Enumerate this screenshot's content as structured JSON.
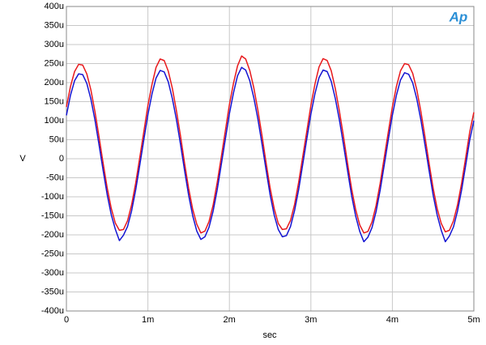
{
  "chart_data": {
    "type": "line",
    "y_label": "V",
    "x_label": "sec",
    "logo": "Ap",
    "grid": true,
    "xlim": [
      0,
      0.005
    ],
    "ylim": [
      -0.0004,
      0.0004
    ],
    "xticks": [
      0,
      {
        "value": 0.001,
        "label": "1m"
      },
      {
        "value": 0.002,
        "label": "2m"
      },
      {
        "value": 0.003,
        "label": "3m"
      },
      {
        "value": 0.004,
        "label": "4m"
      },
      {
        "value": 0.005,
        "label": "5m"
      }
    ],
    "yticks": [
      {
        "value": 0.0004,
        "label": "400u"
      },
      {
        "value": 0.00035,
        "label": "350u"
      },
      {
        "value": 0.0003,
        "label": "300u"
      },
      {
        "value": 0.00025,
        "label": "250u"
      },
      {
        "value": 0.0002,
        "label": "200u"
      },
      {
        "value": 0.00015,
        "label": "150u"
      },
      {
        "value": 0.0001,
        "label": "100u"
      },
      {
        "value": 5e-05,
        "label": "50u"
      },
      0,
      {
        "value": -5e-05,
        "label": "-50u"
      },
      {
        "value": -0.0001,
        "label": "-100u"
      },
      {
        "value": -0.00015,
        "label": "-150u"
      },
      {
        "value": -0.0002,
        "label": "-200u"
      },
      {
        "value": -0.00025,
        "label": "-250u"
      },
      {
        "value": -0.0003,
        "label": "-300u"
      },
      {
        "value": -0.00035,
        "label": "-350u"
      },
      {
        "value": -0.0004,
        "label": "-400u"
      }
    ],
    "x": [
      0,
      5e-05,
      0.0001,
      0.00015,
      0.0002,
      0.00025,
      0.0003,
      0.00035,
      0.0004,
      0.00045,
      0.0005,
      0.00055,
      0.0006,
      0.00065,
      0.0007,
      0.00075,
      0.0008,
      0.00085,
      0.0009,
      0.00095,
      0.001,
      0.00105,
      0.0011,
      0.00115,
      0.0012,
      0.00125,
      0.0013,
      0.00135,
      0.0014,
      0.00145,
      0.0015,
      0.00155,
      0.0016,
      0.00165,
      0.0017,
      0.00175,
      0.0018,
      0.00185,
      0.0019,
      0.00195,
      0.002,
      0.00205,
      0.0021,
      0.00215,
      0.0022,
      0.00225,
      0.0023,
      0.00235,
      0.0024,
      0.00245,
      0.0025,
      0.00255,
      0.0026,
      0.00265,
      0.0027,
      0.00275,
      0.0028,
      0.00285,
      0.0029,
      0.00295,
      0.003,
      0.00305,
      0.0031,
      0.00315,
      0.0032,
      0.00325,
      0.0033,
      0.00335,
      0.0034,
      0.00345,
      0.0035,
      0.00355,
      0.0036,
      0.00365,
      0.0037,
      0.00375,
      0.0038,
      0.00385,
      0.0039,
      0.00395,
      0.004,
      0.00405,
      0.0041,
      0.00415,
      0.0042,
      0.00425,
      0.0043,
      0.00435,
      0.0044,
      0.00445,
      0.0045,
      0.00455,
      0.0046,
      0.00465,
      0.0047,
      0.00475,
      0.0048,
      0.00485,
      0.0049,
      0.00495,
      0.005
    ],
    "series": [
      {
        "color": "#e8191c",
        "values": [
          0.000136,
          0.00019,
          0.000229,
          0.000248,
          0.000246,
          0.000223,
          0.000181,
          0.000124,
          5.8e-05,
          -1.1e-05,
          -7.6e-05,
          -0.00013,
          -0.000169,
          -0.000188,
          -0.000186,
          -0.000163,
          -0.000121,
          -6.4e-05,
          3e-06,
          7.1e-05,
          0.00014,
          0.000195,
          0.00024,
          0.000262,
          0.000258,
          0.00023,
          0.000185,
          0.000126,
          6e-05,
          -1.2e-05,
          -7.8e-05,
          -0.000133,
          -0.000172,
          -0.000195,
          -0.00019,
          -0.000165,
          -0.000122,
          -6.3e-05,
          4e-06,
          7.3e-05,
          0.000142,
          0.000198,
          0.000244,
          0.00027,
          0.000262,
          0.000232,
          0.000186,
          0.000127,
          6.1e-05,
          -1e-05,
          -7.7e-05,
          -0.000131,
          -0.00017,
          -0.000186,
          -0.000184,
          -0.000162,
          -0.00012,
          -6.2e-05,
          5e-06,
          7.2e-05,
          0.00014,
          0.000196,
          0.000241,
          0.000263,
          0.000258,
          0.000231,
          0.000184,
          0.000125,
          5.9e-05,
          -1.2e-05,
          -7.9e-05,
          -0.000134,
          -0.000174,
          -0.000195,
          -0.000191,
          -0.000166,
          -0.000123,
          -6.5e-05,
          3e-06,
          7e-05,
          0.000136,
          0.00019,
          0.000231,
          0.00025,
          0.000247,
          0.000224,
          0.000181,
          0.000124,
          5.8e-05,
          -1.1e-05,
          -7.7e-05,
          -0.000131,
          -0.00017,
          -0.000192,
          -0.000188,
          -0.000163,
          -0.000121,
          -6.4e-05,
          3e-06,
          7.1e-05,
          0.000122
        ]
      },
      {
        "color": "#1414d2",
        "values": [
          0.000114,
          0.000167,
          0.000205,
          0.000223,
          0.000221,
          0.000198,
          0.000157,
          0.000102,
          3.7e-05,
          -3e-05,
          -9.4e-05,
          -0.000147,
          -0.000185,
          -0.000215,
          -0.000201,
          -0.000178,
          -0.000137,
          -8.2e-05,
          -1.7e-05,
          5e-05,
          0.000116,
          0.00017,
          0.000212,
          0.000232,
          0.000228,
          0.000202,
          0.000158,
          0.000103,
          3.8e-05,
          -3.1e-05,
          -9.6e-05,
          -0.00015,
          -0.00019,
          -0.000212,
          -0.000205,
          -0.00018,
          -0.000138,
          -8.2e-05,
          -1.6e-05,
          5.1e-05,
          0.000118,
          0.000173,
          0.000218,
          0.00024,
          0.000233,
          0.000205,
          0.00016,
          0.000104,
          3.9e-05,
          -2.9e-05,
          -9.5e-05,
          -0.000148,
          -0.000186,
          -0.000205,
          -0.000202,
          -0.000178,
          -0.000136,
          -8.1e-05,
          -1.5e-05,
          5.2e-05,
          0.000117,
          0.000171,
          0.000213,
          0.000233,
          0.000229,
          0.000203,
          0.000158,
          0.000102,
          3.7e-05,
          -3.1e-05,
          -9.7e-05,
          -0.000151,
          -0.000191,
          -0.000218,
          -0.000206,
          -0.000181,
          -0.000139,
          -8.3e-05,
          -1.7e-05,
          5e-05,
          0.000114,
          0.000167,
          0.000207,
          0.000226,
          0.000222,
          0.000199,
          0.000157,
          0.000102,
          3.7e-05,
          -3e-05,
          -9.5e-05,
          -0.000148,
          -0.000188,
          -0.000218,
          -0.000203,
          -0.000179,
          -0.000137,
          -8.2e-05,
          -1.7e-05,
          5e-05,
          0.0001
        ]
      }
    ]
  }
}
